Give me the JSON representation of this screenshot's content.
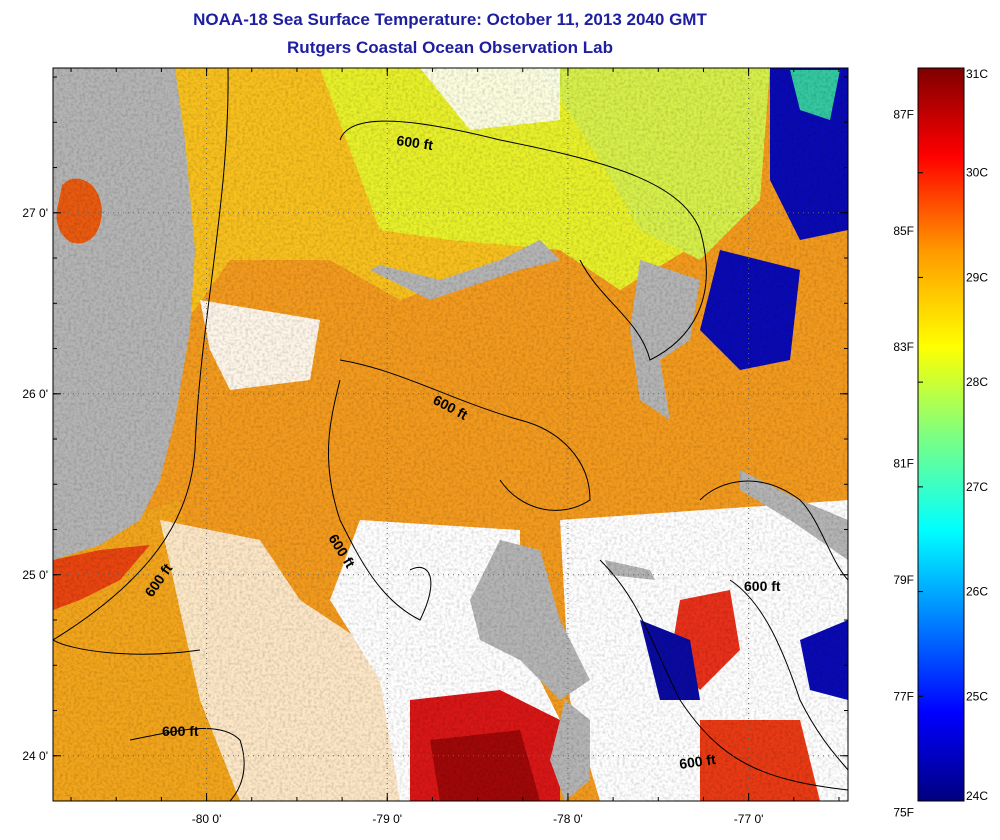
{
  "title": {
    "line1": "NOAA-18 Sea Surface Temperature:  October 11, 2013 2040 GMT",
    "line2": "Rutgers Coastal Ocean Observation Lab"
  },
  "map": {
    "lon_range": [
      -80.85,
      -76.45
    ],
    "lat_range": [
      23.75,
      27.8
    ],
    "lon_ticks": [
      {
        "value": -80,
        "label": "-80 0'"
      },
      {
        "value": -79,
        "label": "-79 0'"
      },
      {
        "value": -78,
        "label": "-78 0'"
      },
      {
        "value": -77,
        "label": "-77 0'"
      }
    ],
    "lat_ticks": [
      {
        "value": 27,
        "label": "27 0'"
      },
      {
        "value": 26,
        "label": "26 0'"
      },
      {
        "value": 25,
        "label": "25 0'"
      },
      {
        "value": 24,
        "label": "24 0'"
      }
    ],
    "grid": "dotted",
    "contour_labels": [
      "600 ft",
      "600 ft",
      "600 ft",
      "600 ft",
      "600 ft",
      "600 ft",
      "600 ft"
    ],
    "land_color": "#b4b4b4",
    "cloud_color": "#ffffff"
  },
  "colorbar": {
    "celsius_range": [
      24,
      31
    ],
    "celsius_labels": [
      "31C",
      "30C",
      "29C",
      "28C",
      "27C",
      "26C",
      "25C",
      "24C"
    ],
    "fahrenheit_labels": [
      "87F",
      "85F",
      "83F",
      "81F",
      "79F",
      "77F",
      "75F"
    ],
    "fahrenheit_values": [
      87,
      85,
      83,
      81,
      79,
      77,
      75
    ],
    "colors": [
      "#00007f",
      "#0000ff",
      "#007fff",
      "#00ffff",
      "#7fff7f",
      "#ffff00",
      "#ff7f00",
      "#ff0000",
      "#7f0000"
    ]
  }
}
